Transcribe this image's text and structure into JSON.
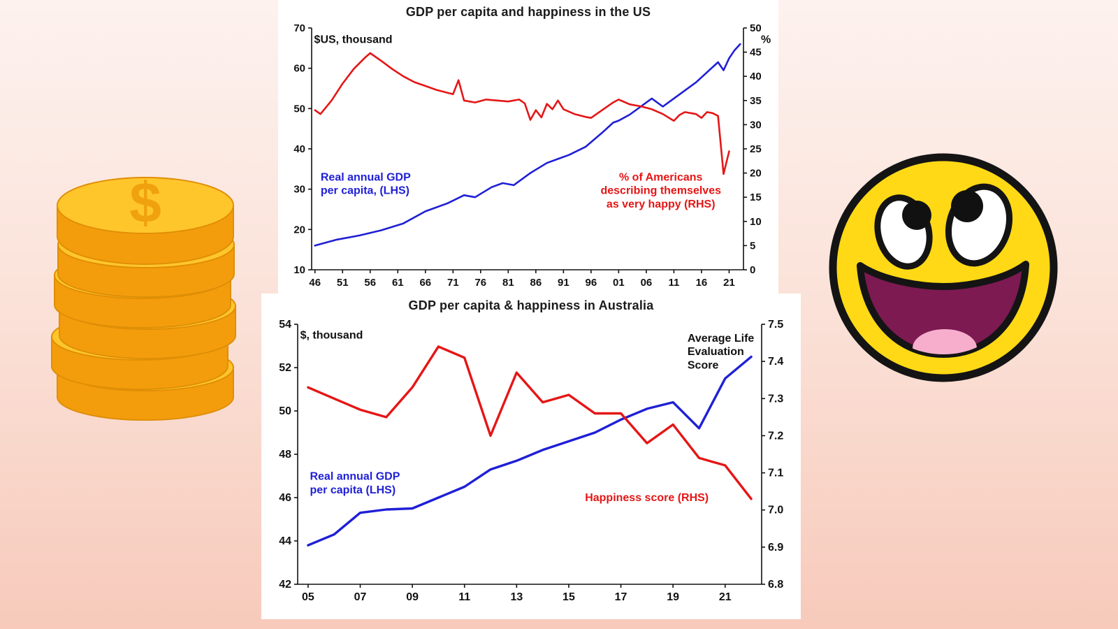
{
  "background": {
    "top": "#fdf2ef",
    "bottom": "#f7cabb"
  },
  "decorations": {
    "coins_icon": "gold-dollar-coins-stack-icon",
    "smiley_icon": "awesome-face-icon",
    "coin_symbol": "$",
    "coin_face_color": "#FFC62B",
    "coin_side_color": "#F49D0C",
    "smiley_face_color": "#FFD915",
    "smiley_mouth_color": "#7D1A52",
    "smiley_tongue_color": "#F6AECC"
  },
  "chart_data": [
    {
      "id": "us",
      "type": "line",
      "title": "GDP per capita and happiness in the US",
      "x_range": [
        1945.4,
        2023.6
      ],
      "x_ticks": [
        {
          "label": "46",
          "value": 1946
        },
        {
          "label": "51",
          "value": 1951
        },
        {
          "label": "56",
          "value": 1956
        },
        {
          "label": "61",
          "value": 1961
        },
        {
          "label": "66",
          "value": 1966
        },
        {
          "label": "71",
          "value": 1971
        },
        {
          "label": "76",
          "value": 1976
        },
        {
          "label": "81",
          "value": 1981
        },
        {
          "label": "86",
          "value": 1986
        },
        {
          "label": "91",
          "value": 1991
        },
        {
          "label": "96",
          "value": 1996
        },
        {
          "label": "01",
          "value": 2001
        },
        {
          "label": "06",
          "value": 2006
        },
        {
          "label": "11",
          "value": 2011
        },
        {
          "label": "16",
          "value": 2016
        },
        {
          "label": "21",
          "value": 2021
        }
      ],
      "left_axis": {
        "label": "$US, thousand",
        "min": 10,
        "max": 70,
        "tick_values": [
          10,
          20,
          30,
          40,
          50,
          60,
          70
        ],
        "tick_labels": [
          "10",
          "20",
          "30",
          "40",
          "50",
          "60",
          "70"
        ]
      },
      "right_axis": {
        "label": "%",
        "min": 0,
        "max": 50,
        "tick_values": [
          0,
          5,
          10,
          15,
          20,
          25,
          30,
          35,
          40,
          45,
          50
        ],
        "tick_labels": [
          "0",
          "5",
          "10",
          "15",
          "20",
          "25",
          "30",
          "35",
          "40",
          "45",
          "50"
        ]
      },
      "series": [
        {
          "id": "us-gdp",
          "name": "Real annual GDP per capita, (LHS)",
          "axis": "left",
          "color": "#1f1fd6",
          "x": [
            1946,
            1950,
            1954,
            1958,
            1962,
            1966,
            1970,
            1973,
            1975,
            1978,
            1980,
            1982,
            1985,
            1988,
            1990,
            1992,
            1995,
            1998,
            2000,
            2001,
            2003,
            2005,
            2007,
            2009,
            2011,
            2013,
            2015,
            2017,
            2019,
            2020,
            2021,
            2022,
            2023
          ],
          "y": [
            16,
            17.5,
            18.5,
            19.8,
            21.5,
            24.5,
            26.5,
            28.5,
            28,
            30.5,
            31.5,
            31,
            34,
            36.5,
            37.5,
            38.5,
            40.5,
            44,
            46.5,
            47,
            48.5,
            50.5,
            52.5,
            50.5,
            52.5,
            54.5,
            56.5,
            59,
            61.5,
            59.5,
            62.5,
            64.5,
            66
          ]
        },
        {
          "id": "us-happiness",
          "name": "% of Americans describing themselves as very happy (RHS)",
          "axis": "right",
          "color": "#e51616",
          "x": [
            1946,
            1947,
            1949,
            1951,
            1953,
            1955,
            1956,
            1958,
            1960,
            1962,
            1964,
            1966,
            1968,
            1970,
            1971,
            1972,
            1973,
            1975,
            1977,
            1979,
            1981,
            1983,
            1984,
            1985,
            1986,
            1987,
            1988,
            1989,
            1990,
            1991,
            1993,
            1995,
            1996,
            1998,
            2000,
            2001,
            2003,
            2005,
            2007,
            2009,
            2011,
            2012,
            2013,
            2015,
            2016,
            2017,
            2018,
            2019,
            2020,
            2021
          ],
          "y": [
            33,
            32.2,
            35,
            38.5,
            41.5,
            43.8,
            44.8,
            43.2,
            41.5,
            40,
            38.8,
            38,
            37.2,
            36.6,
            36.3,
            39.2,
            35,
            34.6,
            35.2,
            35,
            34.8,
            35.2,
            34.4,
            31,
            33,
            31.5,
            34.3,
            33.2,
            35,
            33.2,
            32.2,
            31.6,
            31.4,
            33,
            34.6,
            35.2,
            34.2,
            33.8,
            33.2,
            32.2,
            30.8,
            32,
            32.6,
            32.2,
            31.4,
            32.6,
            32.4,
            31.8,
            19.8,
            24.5
          ]
        }
      ],
      "annotations": [
        {
          "lines": [
            "$US, thousand"
          ],
          "color": "#111111",
          "x": 0.072,
          "y": 0.085,
          "anchor": "start",
          "size": 16
        },
        {
          "lines": [
            "%"
          ],
          "color": "#111111",
          "x": 0.985,
          "y": 0.085,
          "anchor": "end",
          "size": 16
        },
        {
          "lines": [
            "Real annual GDP",
            "per capita, (LHS)"
          ],
          "color": "#1f1fd6",
          "x": 0.085,
          "y": 0.585,
          "anchor": "start",
          "size": 16
        },
        {
          "lines": [
            "% of Americans",
            "describing themselves",
            "as very happy (RHS)"
          ],
          "color": "#e51616",
          "x": 0.765,
          "y": 0.585,
          "anchor": "middle",
          "size": 16
        }
      ],
      "legend": "none",
      "grid": false
    },
    {
      "id": "aus",
      "type": "line",
      "title": "GDP per capita & happiness in Australia",
      "x_range": [
        2004.6,
        2022.4
      ],
      "x_ticks": [
        {
          "label": "05",
          "value": 2005
        },
        {
          "label": "07",
          "value": 2007
        },
        {
          "label": "09",
          "value": 2009
        },
        {
          "label": "11",
          "value": 2011
        },
        {
          "label": "13",
          "value": 2013
        },
        {
          "label": "15",
          "value": 2015
        },
        {
          "label": "17",
          "value": 2017
        },
        {
          "label": "19",
          "value": 2019
        },
        {
          "label": "21",
          "value": 2021
        }
      ],
      "left_axis": {
        "label": "$, thousand",
        "min": 42,
        "max": 54,
        "tick_values": [
          42,
          44,
          46,
          48,
          50,
          52,
          54
        ],
        "tick_labels": [
          "42",
          "44",
          "46",
          "48",
          "50",
          "52",
          "54"
        ]
      },
      "right_axis": {
        "label": "Average Life Evaluation Score",
        "min": 6.8,
        "max": 7.5,
        "tick_values": [
          6.8,
          6.9,
          7.0,
          7.1,
          7.2,
          7.3,
          7.4,
          7.5
        ],
        "tick_labels": [
          "6.8",
          "6.9",
          "7.0",
          "7.1",
          "7.2",
          "7.3",
          "7.4",
          "7.5"
        ]
      },
      "series": [
        {
          "id": "aus-gdp",
          "name": "Real annual GDP per capita (LHS)",
          "axis": "left",
          "color": "#1f1fd6",
          "x": [
            2005,
            2006,
            2007,
            2008,
            2009,
            2010,
            2011,
            2012,
            2013,
            2014,
            2015,
            2016,
            2017,
            2018,
            2019,
            2020,
            2021,
            2022
          ],
          "y": [
            43.8,
            44.3,
            45.3,
            45.45,
            45.5,
            46.0,
            46.5,
            47.3,
            47.7,
            48.2,
            48.6,
            49.0,
            49.6,
            50.1,
            50.4,
            49.2,
            51.5,
            52.5
          ]
        },
        {
          "id": "aus-happiness",
          "name": "Happiness score (RHS)",
          "axis": "right",
          "color": "#e51616",
          "x": [
            2005,
            2006,
            2007,
            2008,
            2009,
            2010,
            2011,
            2012,
            2013,
            2014,
            2015,
            2016,
            2017,
            2018,
            2019,
            2020,
            2021,
            2022
          ],
          "y": [
            7.33,
            7.3,
            7.27,
            7.25,
            7.33,
            7.44,
            7.41,
            7.2,
            7.37,
            7.29,
            7.31,
            7.26,
            7.26,
            7.18,
            7.23,
            7.14,
            7.12,
            7.03
          ]
        }
      ],
      "annotations": [
        {
          "lines": [
            "$, thousand"
          ],
          "color": "#111111",
          "x": 0.072,
          "y": 0.085,
          "anchor": "start",
          "size": 16
        },
        {
          "lines": [
            "Average Life",
            "Evaluation",
            "Score"
          ],
          "color": "#111111",
          "x": 0.79,
          "y": 0.095,
          "anchor": "start",
          "size": 16
        },
        {
          "lines": [
            "Real annual GDP",
            "per capita (LHS)"
          ],
          "color": "#1f1fd6",
          "x": 0.09,
          "y": 0.555,
          "anchor": "start",
          "size": 16
        },
        {
          "lines": [
            "Happiness score (RHS)"
          ],
          "color": "#e51616",
          "x": 0.6,
          "y": 0.625,
          "anchor": "start",
          "size": 16
        }
      ],
      "legend": "none",
      "grid": false
    }
  ]
}
